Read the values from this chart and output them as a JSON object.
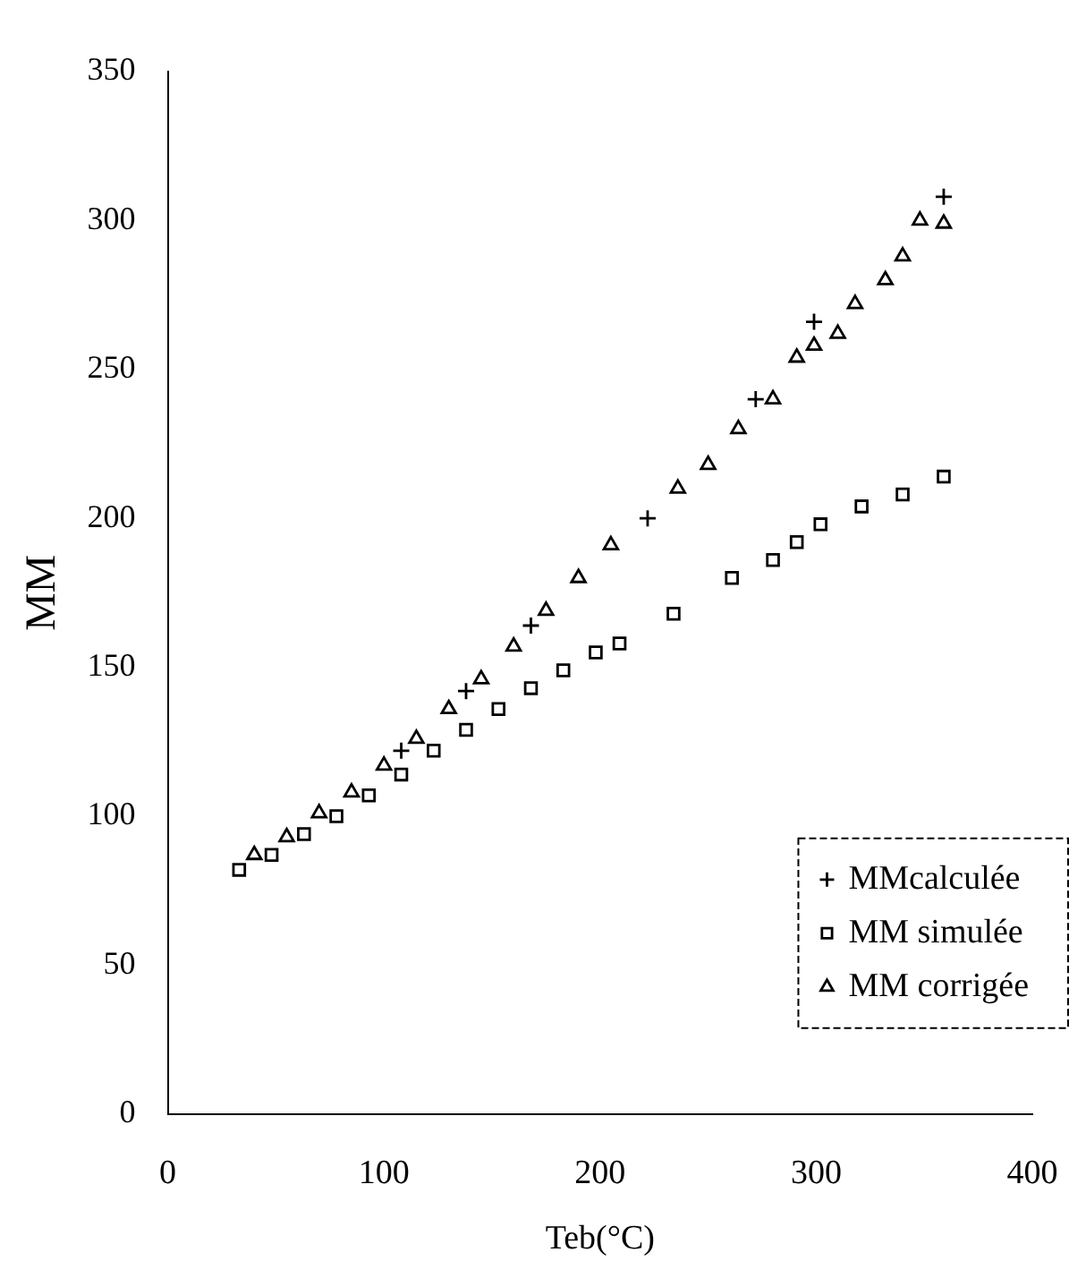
{
  "chart_data": {
    "type": "scatter",
    "xlabel": "Teb(°C)",
    "ylabel": "MM",
    "xlim": [
      0,
      400
    ],
    "ylim": [
      0,
      350
    ],
    "xticks": [
      0,
      100,
      200,
      300,
      400
    ],
    "yticks": [
      0,
      50,
      100,
      150,
      200,
      250,
      300,
      350
    ],
    "grid": false,
    "legend": "bottom right",
    "series": [
      {
        "name": "MMcalculée",
        "color": "#000000",
        "marker": "cross",
        "x": [
          108,
          138,
          168,
          222,
          272,
          299,
          359
        ],
        "values": [
          122,
          142,
          164,
          200,
          240,
          266,
          308
        ]
      },
      {
        "name": "MM simulée",
        "color": "#000000",
        "marker": "square",
        "x": [
          33,
          48,
          63,
          78,
          93,
          108,
          123,
          138,
          153,
          168,
          183,
          198,
          209,
          234,
          261,
          280,
          291,
          302,
          321,
          340,
          359
        ],
        "values": [
          82,
          87,
          94,
          100,
          107,
          114,
          122,
          129,
          136,
          143,
          149,
          155,
          158,
          168,
          180,
          186,
          192,
          198,
          204,
          208,
          214
        ]
      },
      {
        "name": "MM corrigée",
        "color": "#000000",
        "marker": "triangle",
        "x": [
          40,
          55,
          70,
          85,
          100,
          115,
          130,
          145,
          160,
          175,
          190,
          205,
          236,
          250,
          264,
          280,
          291,
          299,
          310,
          318,
          332,
          340,
          348,
          359
        ],
        "values": [
          87,
          93,
          101,
          108,
          117,
          126,
          136,
          146,
          157,
          169,
          180,
          191,
          210,
          218,
          230,
          240,
          254,
          258,
          262,
          272,
          280,
          288,
          300,
          299
        ]
      }
    ]
  }
}
